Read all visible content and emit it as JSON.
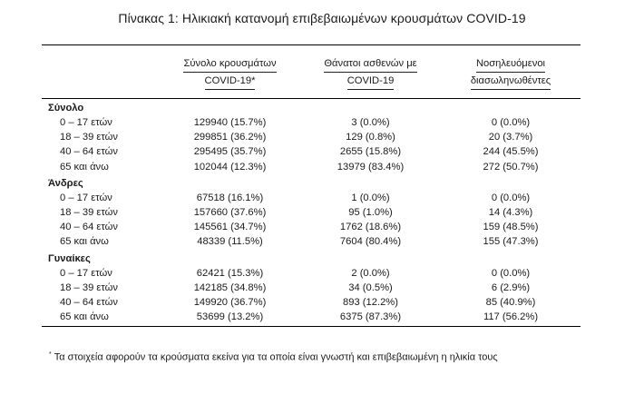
{
  "title": "Πίνακας 1: Ηλικιακή κατανομή επιβεβαιωμένων κρουσμάτων COVID-19",
  "columns": {
    "cases_line1": "Σύνολο κρουσμάτων",
    "cases_line2": "COVID-19*",
    "deaths_line1": "Θάνατοι ασθενών με",
    "deaths_line2": "COVID-19",
    "icu_line1": "Νοσηλευόμενοι",
    "icu_line2": "διασωληνωθέντες"
  },
  "groups": [
    {
      "name": "Σύνολο",
      "rows": [
        {
          "age": "0 – 17 ετών",
          "cases": "129940 (15.7%)",
          "deaths": "3 (0.0%)",
          "icu": "0 (0.0%)"
        },
        {
          "age": "18 – 39 ετών",
          "cases": "299851 (36.2%)",
          "deaths": "129 (0.8%)",
          "icu": "20 (3.7%)"
        },
        {
          "age": "40 – 64 ετών",
          "cases": "295495 (35.7%)",
          "deaths": "2655 (15.8%)",
          "icu": "244 (45.5%)"
        },
        {
          "age": "65 και άνω",
          "cases": "102044 (12.3%)",
          "deaths": "13979 (83.4%)",
          "icu": "272 (50.7%)"
        }
      ]
    },
    {
      "name": "Άνδρες",
      "rows": [
        {
          "age": "0 – 17 ετών",
          "cases": "67518 (16.1%)",
          "deaths": "1 (0.0%)",
          "icu": "0 (0.0%)"
        },
        {
          "age": "18 – 39 ετών",
          "cases": "157660 (37.6%)",
          "deaths": "95 (1.0%)",
          "icu": "14 (4.3%)"
        },
        {
          "age": "40 – 64 ετών",
          "cases": "145561 (34.7%)",
          "deaths": "1762 (18.6%)",
          "icu": "159 (48.5%)"
        },
        {
          "age": "65 και άνω",
          "cases": "48339 (11.5%)",
          "deaths": "7604 (80.4%)",
          "icu": "155 (47.3%)"
        }
      ]
    },
    {
      "name": "Γυναίκες",
      "rows": [
        {
          "age": "0 – 17 ετών",
          "cases": "62421 (15.3%)",
          "deaths": "2 (0.0%)",
          "icu": "0 (0.0%)"
        },
        {
          "age": "18 – 39 ετών",
          "cases": "142185 (34.8%)",
          "deaths": "34 (0.5%)",
          "icu": "6 (2.9%)"
        },
        {
          "age": "40 – 64 ετών",
          "cases": "149920 (36.7%)",
          "deaths": "893 (12.2%)",
          "icu": "85 (40.9%)"
        },
        {
          "age": "65 και άνω",
          "cases": "53699 (13.2%)",
          "deaths": "6375 (87.3%)",
          "icu": "117 (56.2%)"
        }
      ]
    }
  ],
  "footnote": {
    "marker": "*",
    "text": "Τα στοιχεία αφορούν τα κρούσματα εκείνα για τα οποία είναι γνωστή και επιβεβαιωμένη η ηλικία τους"
  }
}
